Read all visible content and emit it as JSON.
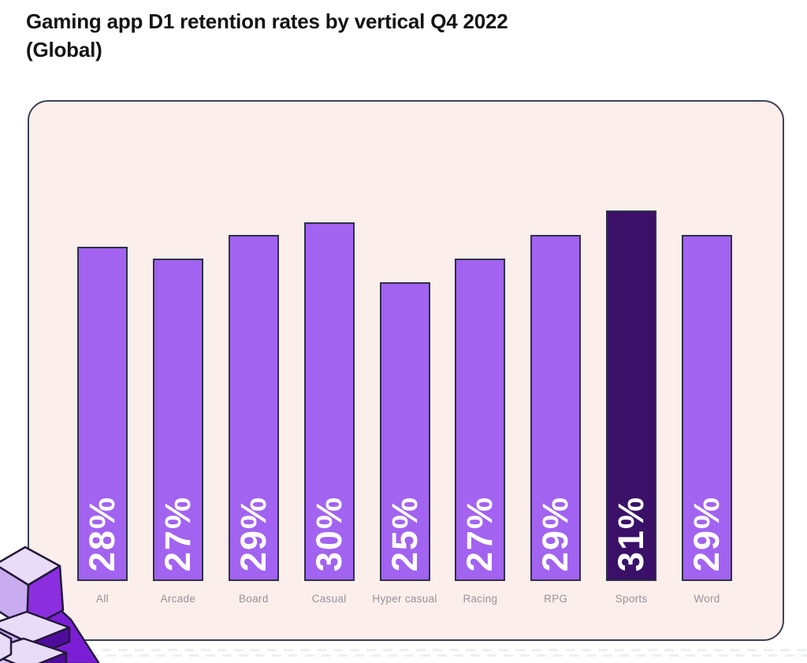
{
  "chart_data": {
    "type": "bar",
    "title": "Gaming app D1 retention rates by vertical Q4 2022 (Global)",
    "categories": [
      "All",
      "Arcade",
      "Board",
      "Casual",
      "Hyper casual",
      "Racing",
      "RPG",
      "Sports",
      "Word"
    ],
    "values": [
      28,
      27,
      29,
      30,
      25,
      27,
      29,
      31,
      29
    ],
    "value_labels": [
      "28%",
      "27%",
      "29%",
      "30%",
      "25%",
      "27%",
      "29%",
      "31%",
      "29%"
    ],
    "highlight_index": 7,
    "highlight_category": "Sports",
    "xlabel": "",
    "ylabel": "",
    "ylim": [
      0,
      31
    ],
    "grid": false,
    "legend": "none",
    "value_label_position": "inside-bottom-rotated",
    "colors": {
      "bar_fill": "#a263f0",
      "bar_highlight_fill": "#3a1069",
      "bar_border": "#2e3147",
      "panel_background": "#fceeea",
      "panel_border": "#3c4156",
      "value_label": "#ffffff",
      "category_label": "#97939b",
      "title_color": "#141414"
    }
  },
  "decorations": {
    "mascot": "isometric purple chess-pawn trophy illustration (bottom-left, cropped)",
    "texture": "faint dashed strip below panel"
  }
}
